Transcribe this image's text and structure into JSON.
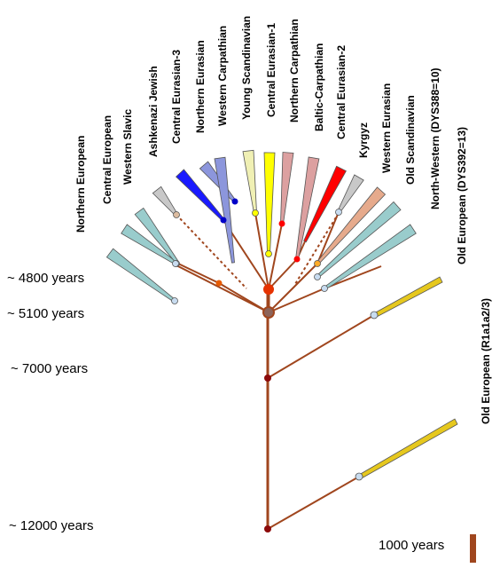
{
  "ages": [
    "~ 4800 years",
    "~ 5100 years",
    "~ 7000 years",
    "~ 12000 years"
  ],
  "branches": [
    {
      "label": "Northern European",
      "color": "#99cccc"
    },
    {
      "label": "Central European",
      "color": "#99cccc"
    },
    {
      "label": "Western  Slavic",
      "color": "#99cccc"
    },
    {
      "label": "Ashkenazi Jewish",
      "color": "#c8c8c8"
    },
    {
      "label": "Central Eurasian-3",
      "color": "#1a1aff"
    },
    {
      "label": "Northern  Eurasian",
      "color": "#8c96dc"
    },
    {
      "label": "Western Carpathian",
      "color": "#8c96dc"
    },
    {
      "label": "Young Scandinavian",
      "color": "#f0f0b4"
    },
    {
      "label": "Central Eurasian-1",
      "color": "#ffff00"
    },
    {
      "label": "Northern Carpathian",
      "color": "#dca0a0"
    },
    {
      "label": "Baltic-Carpathian",
      "color": "#dca0a0"
    },
    {
      "label": "Central Eurasian-2",
      "color": "#ff0000"
    },
    {
      "label": "Kyrgyz",
      "color": "#c8c8c8"
    },
    {
      "label": "Western Eurasian",
      "color": "#e6aa8c"
    },
    {
      "label": "Old Scandinavian",
      "color": "#99cccc"
    },
    {
      "label": "North-Western (DYS388=10)",
      "color": "#99cccc"
    },
    {
      "label": "Old European (DYS392=13)",
      "color": "#e6c81e"
    },
    {
      "label": "Old European (R1a1a2/3)",
      "color": "#e6c81e"
    }
  ],
  "scale": {
    "label": "1000 years",
    "color": "#a0461e"
  },
  "colors": {
    "trunk": "#a0461e",
    "node": "#8c0a0a"
  }
}
